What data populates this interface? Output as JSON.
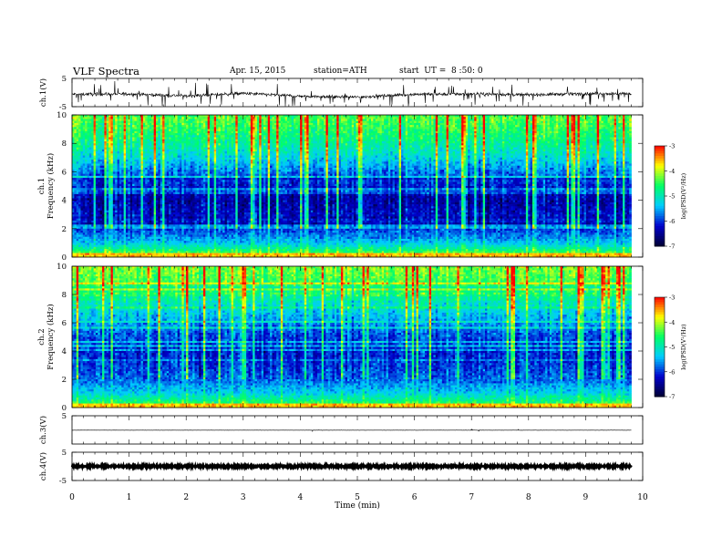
{
  "header": {
    "title": "VLF Spectra",
    "date": "Apr. 15, 2015",
    "station": "station=ATH",
    "start": "start  UT =  8 :50: 0"
  },
  "colorbar": {
    "label": "log(PSD(V²/Hz)",
    "ticks": [
      "-3",
      "-4",
      "-5",
      "-6",
      "-7"
    ],
    "colors": [
      "#ff0000",
      "#ffff00",
      "#00ff66",
      "#00ccff",
      "#0000cc",
      "#000033"
    ]
  },
  "chart_data": [
    {
      "type": "line",
      "name": "ch1-waveform",
      "ylabel": "ch.1(V)",
      "ylim": [
        -5,
        5
      ],
      "y_ticks": [
        "5",
        "-5"
      ],
      "x": [
        0,
        1,
        2,
        3,
        4,
        5,
        6,
        7,
        8,
        9,
        9.8
      ],
      "y": [
        -0.6,
        -0.5,
        -1.2,
        -0.3,
        -1.3,
        -1.6,
        -0.6,
        -0.5,
        -0.8,
        -0.4,
        -0.4
      ]
    },
    {
      "type": "heatmap",
      "name": "ch1-spectrogram",
      "ylabel": "Frequency (kHz)",
      "panel_label": "ch.1",
      "ylim": [
        0,
        10
      ],
      "y_ticks": [
        "0",
        "2",
        "4",
        "6",
        "8",
        "10"
      ],
      "xlim": [
        0,
        10
      ],
      "x_end": 9.8,
      "freq_profile_kHz": [
        0,
        1,
        2,
        3,
        4,
        5,
        6,
        7,
        8,
        9,
        10
      ],
      "log_psd": [
        -4.0,
        -5.4,
        -6.0,
        -6.2,
        -6.4,
        -6.1,
        -5.7,
        -5.2,
        -4.8,
        -4.5,
        -4.3
      ]
    },
    {
      "type": "heatmap",
      "name": "ch2-spectrogram",
      "ylabel": "Frequency (kHz)",
      "panel_label": "ch.2",
      "ylim": [
        0,
        10
      ],
      "y_ticks": [
        "0",
        "2",
        "4",
        "6",
        "8",
        "10"
      ],
      "xlim": [
        0,
        10
      ],
      "x_end": 9.8,
      "freq_profile_kHz": [
        0,
        1,
        2,
        3,
        4,
        5,
        6,
        7,
        8,
        9,
        10
      ],
      "log_psd": [
        -4.2,
        -5.3,
        -5.8,
        -6.0,
        -6.1,
        -5.9,
        -5.6,
        -5.2,
        -4.8,
        -4.4,
        -4.2
      ]
    },
    {
      "type": "line",
      "name": "ch3-waveform",
      "ylabel": "ch.3(V)",
      "ylim": [
        -5,
        5
      ],
      "y_ticks": [
        "5"
      ],
      "x": [
        0,
        9.8
      ],
      "y": [
        -0.1,
        -0.1
      ]
    },
    {
      "type": "line",
      "name": "ch4-waveform",
      "ylabel": "ch.4(V)",
      "ylim": [
        -5,
        5
      ],
      "y_ticks": [
        "5",
        "-5"
      ],
      "x": [
        0,
        9.8
      ],
      "y": [
        0,
        0
      ]
    },
    {
      "type": "axis",
      "name": "time-axis",
      "xlabel": "Time (min)",
      "xlim": [
        0,
        10
      ],
      "x_ticks": [
        "0",
        "1",
        "2",
        "3",
        "4",
        "5",
        "6",
        "7",
        "8",
        "9",
        "10"
      ]
    }
  ]
}
